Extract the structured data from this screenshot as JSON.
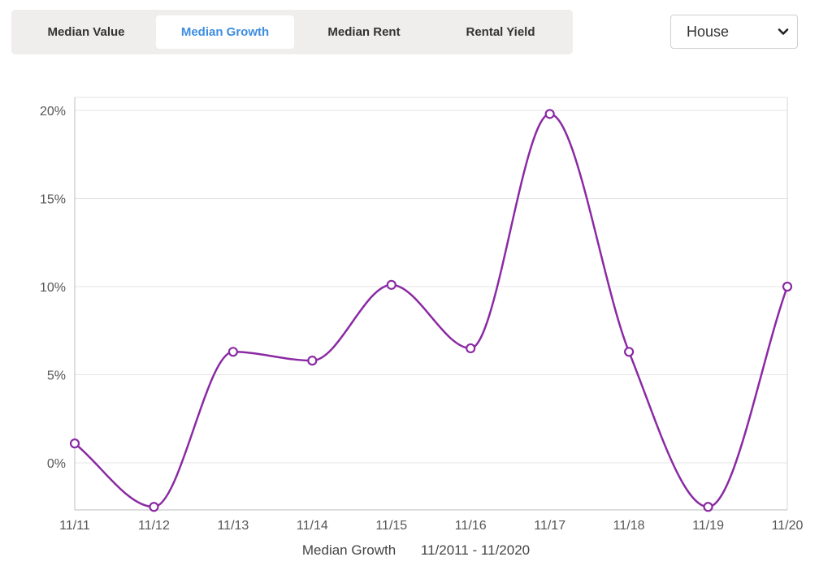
{
  "tabs": [
    {
      "label": "Median Value",
      "active": false
    },
    {
      "label": "Median Growth",
      "active": true
    },
    {
      "label": "Median Rent",
      "active": false
    },
    {
      "label": "Rental Yield",
      "active": false
    }
  ],
  "property_type": {
    "selected": "House",
    "icon": "chevron-down-icon"
  },
  "colors": {
    "series": "#8a2aa3",
    "active_tab": "#3d8de0",
    "grid": "#e4e4e4"
  },
  "caption": {
    "metric": "Median Growth",
    "range": "11/2011 - 11/2020"
  },
  "chart_data": {
    "type": "line",
    "categories": [
      "11/11",
      "11/12",
      "11/13",
      "11/14",
      "11/15",
      "11/16",
      "11/17",
      "11/18",
      "11/19",
      "11/20"
    ],
    "series": [
      {
        "values": [
          1.1,
          -2.5,
          6.3,
          5.8,
          10.1,
          6.5,
          19.8,
          6.3,
          -2.5,
          10.0
        ]
      }
    ],
    "y_ticks": [
      "0%",
      "5%",
      "10%",
      "15%",
      "20%"
    ],
    "y_tick_values": [
      0,
      5,
      10,
      15,
      20
    ],
    "ylim": [
      -2.5,
      20
    ],
    "grid": true,
    "smooth": true
  }
}
